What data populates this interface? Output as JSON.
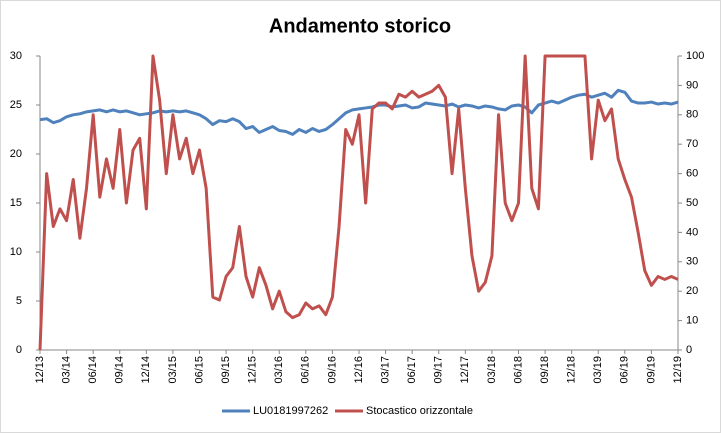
{
  "chart_data": {
    "type": "line",
    "title": "Andamento storico",
    "categories": [
      "12/13",
      null,
      null,
      null,
      "03/14",
      null,
      null,
      null,
      "06/14",
      null,
      null,
      null,
      "09/14",
      null,
      null,
      null,
      "12/14",
      null,
      null,
      null,
      "03/15",
      null,
      null,
      null,
      "06/15",
      null,
      null,
      null,
      "09/15",
      null,
      null,
      null,
      "12/15",
      null,
      null,
      null,
      "03/16",
      null,
      null,
      null,
      "06/16",
      null,
      null,
      null,
      "09/16",
      null,
      null,
      null,
      "12/16",
      null,
      null,
      null,
      "03/17",
      null,
      null,
      null,
      "06/17",
      null,
      null,
      null,
      "09/17",
      null,
      null,
      null,
      "12/17",
      null,
      null,
      null,
      "03/18",
      null,
      null,
      null,
      "06/18",
      null,
      null,
      null,
      "09/18",
      null,
      null,
      null,
      "12/18",
      null,
      null,
      null,
      "03/19",
      null,
      null,
      null,
      "06/19",
      null,
      null,
      null,
      "09/19",
      null,
      null,
      null,
      "12/19"
    ],
    "series": [
      {
        "name": "LU0181997262",
        "color": "#4f81bd",
        "values": [
          23.5,
          23.6,
          23.2,
          23.4,
          23.8,
          24,
          24.1,
          24.3,
          24.4,
          24.5,
          24.3,
          24.5,
          24.3,
          24.4,
          24.2,
          24,
          24.1,
          24.2,
          24.4,
          24.3,
          24.4,
          24.3,
          24.4,
          24.2,
          24,
          23.6,
          23,
          23.4,
          23.3,
          23.6,
          23.3,
          22.6,
          22.8,
          22.2,
          22.5,
          22.8,
          22.4,
          22.3,
          22,
          22.5,
          22.2,
          22.6,
          22.3,
          22.5,
          23,
          23.6,
          24.2,
          24.5,
          24.6,
          24.7,
          24.8,
          25,
          25,
          24.8,
          24.9,
          25,
          24.7,
          24.8,
          25.2,
          25.1,
          25,
          24.9,
          25.1,
          24.8,
          25,
          24.9,
          24.7,
          24.9,
          24.8,
          24.6,
          24.5,
          24.9,
          25,
          24.8,
          24.2,
          25,
          25.2,
          25.4,
          25.2,
          25.5,
          25.8,
          26,
          26.1,
          25.8,
          26,
          26.2,
          25.8,
          26.5,
          26.3,
          25.4,
          25.2,
          25.2,
          25.3,
          25.1,
          25.2,
          25.1,
          25.3
        ]
      },
      {
        "name": "Stocastico orizzontale",
        "color": "#c0504d",
        "axis": "y2",
        "values": [
          0,
          60,
          42,
          48,
          44,
          58,
          38,
          55,
          80,
          52,
          65,
          55,
          75,
          50,
          68,
          72,
          48,
          100,
          85,
          60,
          80,
          65,
          72,
          60,
          68,
          55,
          18,
          17,
          25,
          28,
          42,
          25,
          18,
          28,
          22,
          14,
          20,
          13,
          11,
          12,
          16,
          14,
          15,
          12,
          18,
          42,
          75,
          70,
          80,
          50,
          82,
          84,
          84,
          82,
          87,
          86,
          88,
          86,
          87,
          88,
          90,
          86,
          60,
          82,
          55,
          32,
          20,
          23,
          32,
          80,
          50,
          44,
          50,
          100,
          55,
          48,
          100,
          100,
          100,
          100,
          100,
          100,
          100,
          65,
          85,
          78,
          82,
          65,
          58,
          52,
          40,
          27,
          22,
          25,
          24,
          25,
          24
        ]
      }
    ],
    "ylim": [
      0,
      30
    ],
    "yticks": [
      0,
      5,
      10,
      15,
      20,
      25,
      30
    ],
    "y2lim": [
      0,
      100
    ],
    "y2ticks": [
      0,
      10,
      20,
      30,
      40,
      50,
      60,
      70,
      80,
      90,
      100
    ],
    "grid": false,
    "legend": "bottom"
  }
}
